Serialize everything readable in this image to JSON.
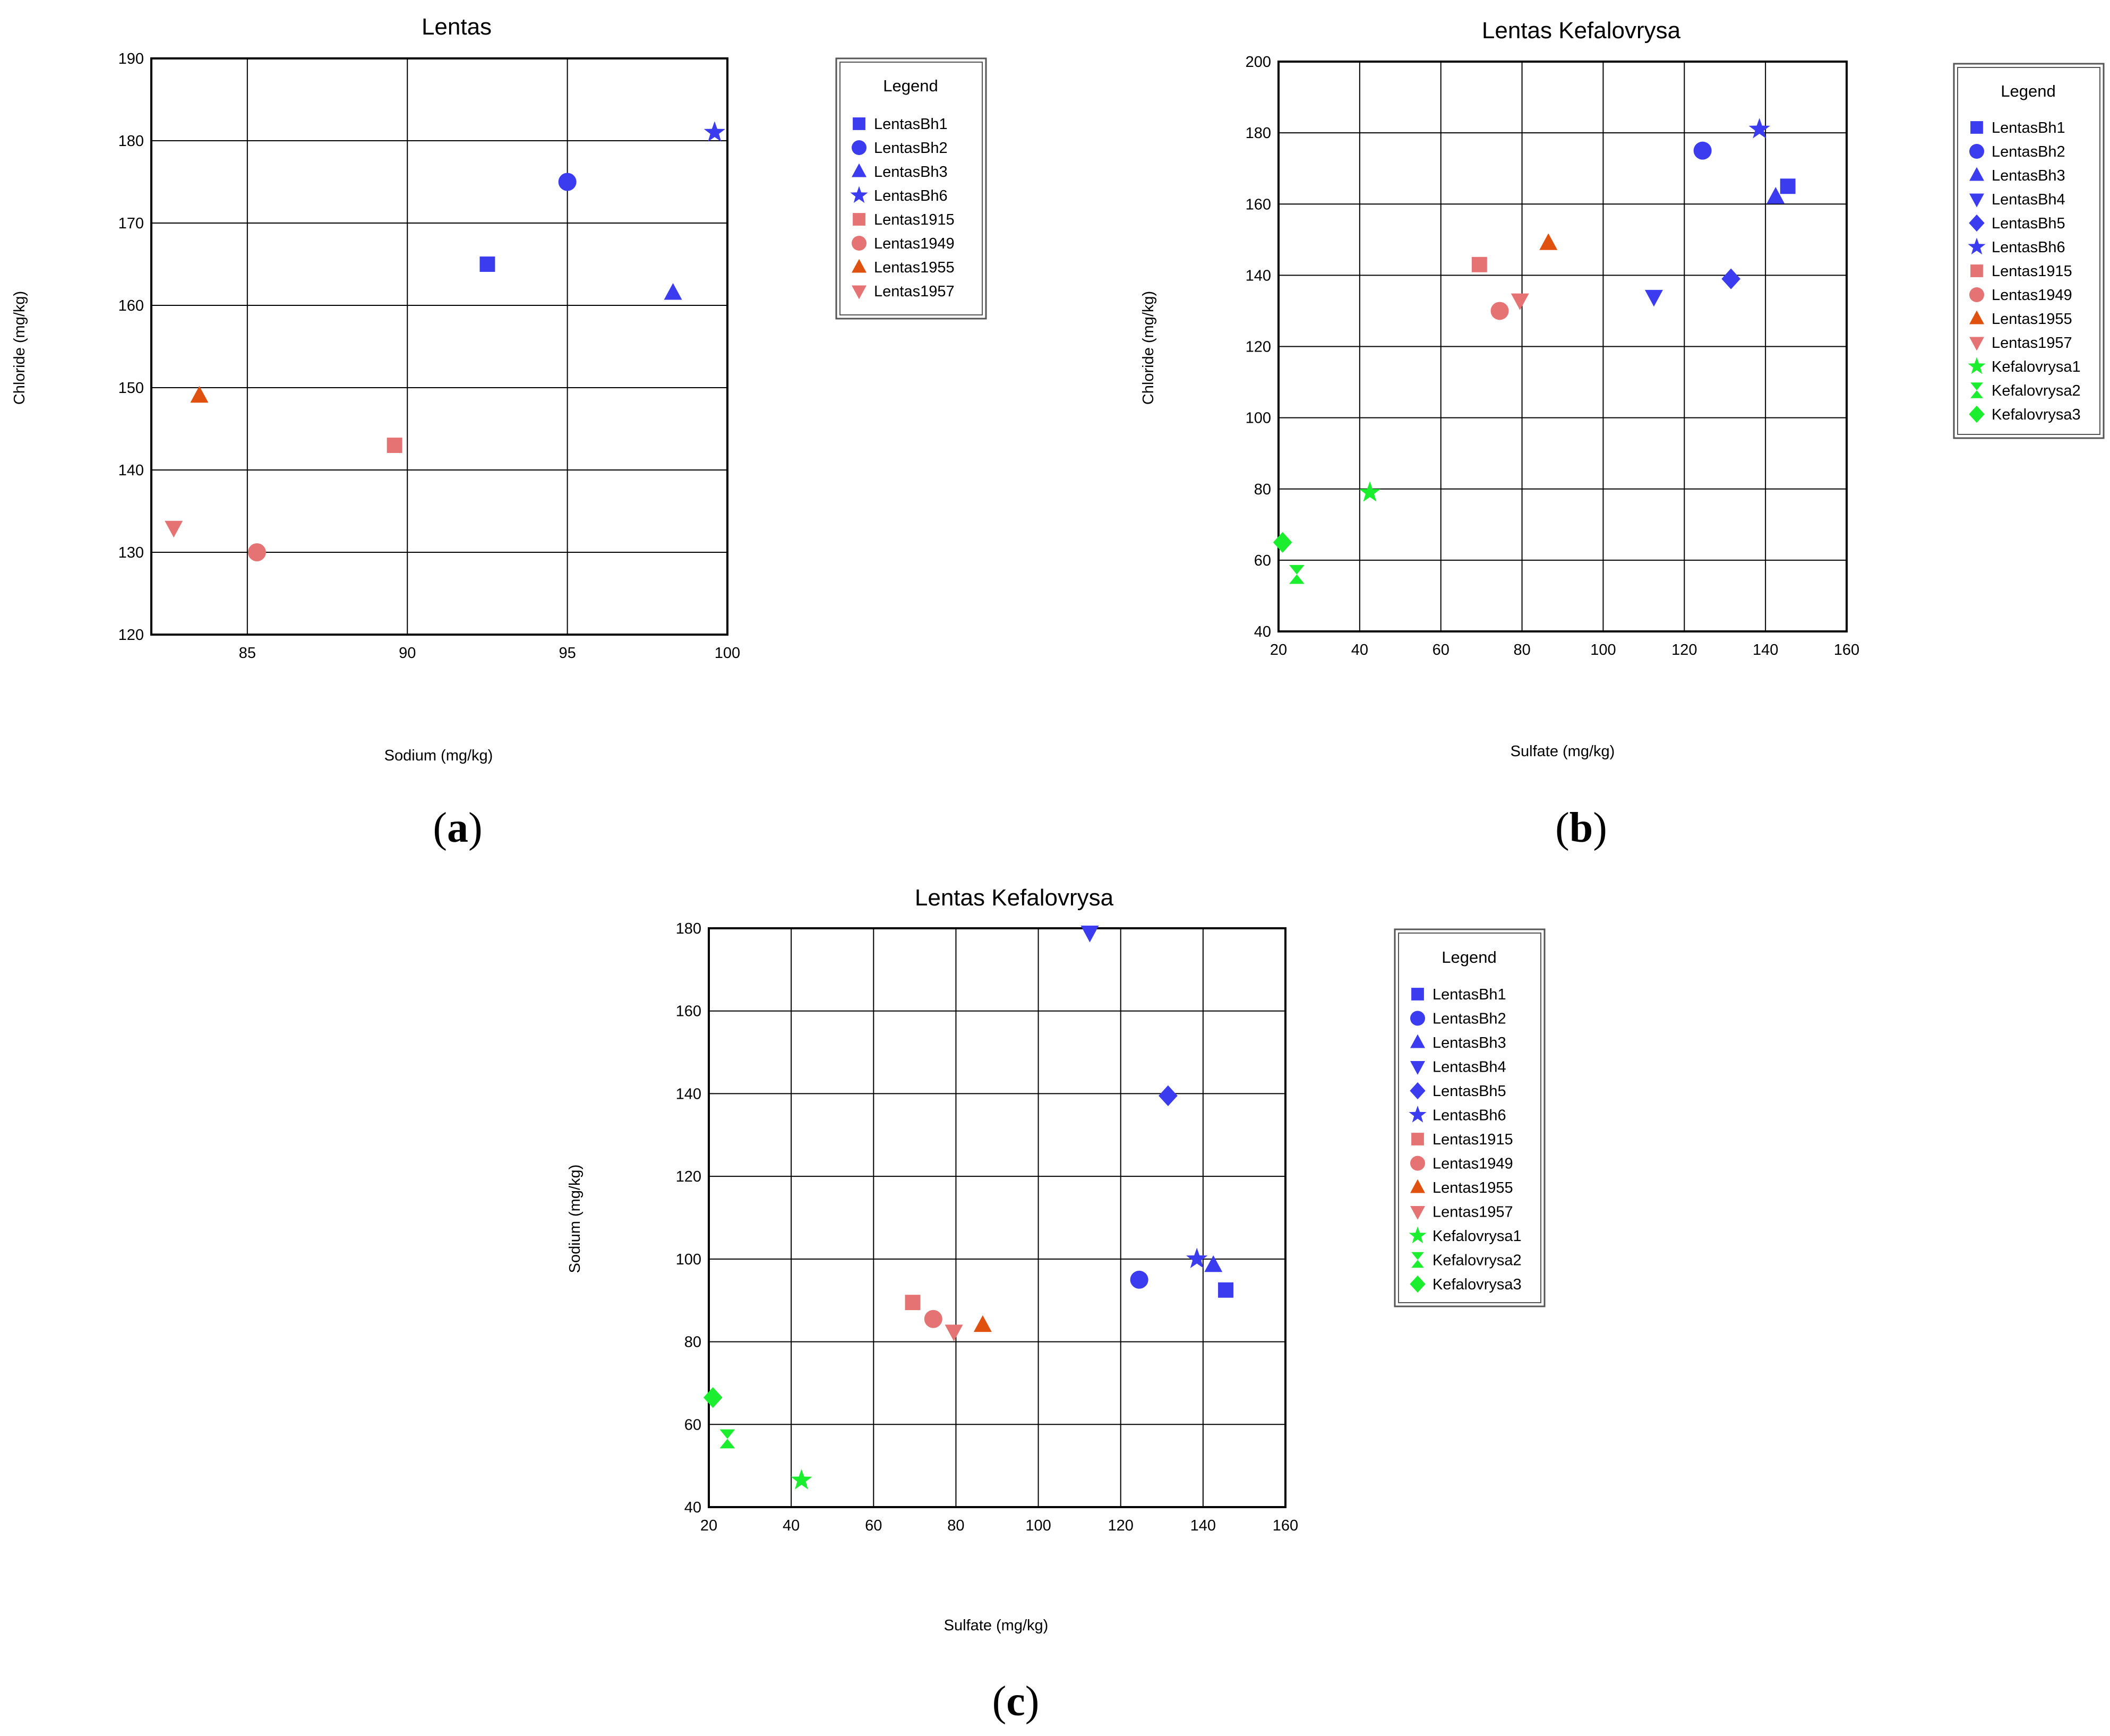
{
  "chart_data": [
    {
      "type": "scatter",
      "title": "Lentas",
      "xlabel": "Sodium (mg/kg)",
      "ylabel": "Chloride (mg/kg)",
      "xlim": [
        82,
        100
      ],
      "ylim": [
        120,
        190
      ],
      "xticks": [
        85,
        90,
        95,
        100
      ],
      "yticks": [
        120,
        130,
        140,
        150,
        160,
        170,
        180,
        190
      ],
      "grid": true,
      "legend_title": "Legend",
      "legend_position": "right",
      "panel_label": "a",
      "series": [
        {
          "name": "LentasBh1",
          "marker": "square",
          "color": "#3b3bf0",
          "points": [
            [
              92.5,
              165
            ]
          ]
        },
        {
          "name": "LentasBh2",
          "marker": "circle",
          "color": "#3b3bf0",
          "points": [
            [
              95,
              175
            ]
          ]
        },
        {
          "name": "LentasBh3",
          "marker": "triangle-up",
          "color": "#3b3bf0",
          "points": [
            [
              98.3,
              161.5
            ]
          ]
        },
        {
          "name": "LentasBh6",
          "marker": "star",
          "color": "#3b3bf0",
          "points": [
            [
              99.6,
              181
            ]
          ]
        },
        {
          "name": "Lentas1915",
          "marker": "square",
          "color": "#e57373",
          "points": [
            [
              89.6,
              143
            ]
          ]
        },
        {
          "name": "Lentas1949",
          "marker": "circle",
          "color": "#e57373",
          "points": [
            [
              85.3,
              130
            ]
          ]
        },
        {
          "name": "Lentas1955",
          "marker": "triangle-up",
          "color": "#e0500f",
          "points": [
            [
              83.5,
              149
            ]
          ]
        },
        {
          "name": "Lentas1957",
          "marker": "triangle-down",
          "color": "#e57373",
          "points": [
            [
              82.7,
              133
            ]
          ]
        }
      ]
    },
    {
      "type": "scatter",
      "title": "Lentas Kefalovrysa",
      "xlabel": "Sulfate (mg/kg)",
      "ylabel": "Chloride (mg/kg)",
      "xlim": [
        20,
        160
      ],
      "ylim": [
        40,
        200
      ],
      "xticks": [
        20,
        40,
        60,
        80,
        100,
        120,
        140,
        160
      ],
      "yticks": [
        40,
        60,
        80,
        100,
        120,
        140,
        160,
        180,
        200
      ],
      "grid": true,
      "legend_title": "Legend",
      "legend_position": "right",
      "panel_label": "b",
      "series": [
        {
          "name": "LentasBh1",
          "marker": "square",
          "color": "#3b3bf0",
          "points": [
            [
              145.5,
              165
            ]
          ]
        },
        {
          "name": "LentasBh2",
          "marker": "circle",
          "color": "#3b3bf0",
          "points": [
            [
              124.5,
              175
            ]
          ]
        },
        {
          "name": "LentasBh3",
          "marker": "triangle-up",
          "color": "#3b3bf0",
          "points": [
            [
              142.5,
              162
            ]
          ]
        },
        {
          "name": "LentasBh4",
          "marker": "triangle-down",
          "color": "#3b3bf0",
          "points": [
            [
              112.5,
              134
            ]
          ]
        },
        {
          "name": "LentasBh5",
          "marker": "diamond",
          "color": "#3b3bf0",
          "points": [
            [
              131.5,
              139
            ]
          ]
        },
        {
          "name": "LentasBh6",
          "marker": "star",
          "color": "#3b3bf0",
          "points": [
            [
              138.5,
              181
            ]
          ]
        },
        {
          "name": "Lentas1915",
          "marker": "square",
          "color": "#e57373",
          "points": [
            [
              69.5,
              143
            ]
          ]
        },
        {
          "name": "Lentas1949",
          "marker": "circle",
          "color": "#e57373",
          "points": [
            [
              74.5,
              130
            ]
          ]
        },
        {
          "name": "Lentas1955",
          "marker": "triangle-up",
          "color": "#e0500f",
          "points": [
            [
              86.5,
              149
            ]
          ]
        },
        {
          "name": "Lentas1957",
          "marker": "triangle-down",
          "color": "#e57373",
          "points": [
            [
              79.5,
              133
            ]
          ]
        },
        {
          "name": "Kefalovrysa1",
          "marker": "star",
          "color": "#1aee2e",
          "points": [
            [
              42.5,
              79
            ]
          ]
        },
        {
          "name": "Kefalovrysa2",
          "marker": "hourglass",
          "color": "#1aee2e",
          "points": [
            [
              24.5,
              56
            ]
          ]
        },
        {
          "name": "Kefalovrysa3",
          "marker": "diamond",
          "color": "#1aee2e",
          "points": [
            [
              21,
              65
            ]
          ]
        }
      ]
    },
    {
      "type": "scatter",
      "title": "Lentas Kefalovrysa",
      "xlabel": "Sulfate (mg/kg)",
      "ylabel": "Sodium (mg/kg)",
      "xlim": [
        20,
        160
      ],
      "ylim": [
        40,
        180
      ],
      "xticks": [
        20,
        40,
        60,
        80,
        100,
        120,
        140,
        160
      ],
      "yticks": [
        40,
        60,
        80,
        100,
        120,
        140,
        160,
        180
      ],
      "grid": true,
      "legend_title": "Legend",
      "legend_position": "right",
      "panel_label": "c",
      "series": [
        {
          "name": "LentasBh1",
          "marker": "square",
          "color": "#3b3bf0",
          "points": [
            [
              145.5,
              92.5
            ]
          ]
        },
        {
          "name": "LentasBh2",
          "marker": "circle",
          "color": "#3b3bf0",
          "points": [
            [
              124.5,
              95
            ]
          ]
        },
        {
          "name": "LentasBh3",
          "marker": "triangle-up",
          "color": "#3b3bf0",
          "points": [
            [
              142.5,
              98.5
            ]
          ]
        },
        {
          "name": "LentasBh4",
          "marker": "triangle-down",
          "color": "#3b3bf0",
          "points": [
            [
              112.5,
              179
            ]
          ]
        },
        {
          "name": "LentasBh5",
          "marker": "diamond",
          "color": "#3b3bf0",
          "points": [
            [
              131.5,
              139.5
            ]
          ]
        },
        {
          "name": "LentasBh6",
          "marker": "star",
          "color": "#3b3bf0",
          "points": [
            [
              138.5,
              100
            ]
          ]
        },
        {
          "name": "Lentas1915",
          "marker": "square",
          "color": "#e57373",
          "points": [
            [
              69.5,
              89.5
            ]
          ]
        },
        {
          "name": "Lentas1949",
          "marker": "circle",
          "color": "#e57373",
          "points": [
            [
              74.5,
              85.5
            ]
          ]
        },
        {
          "name": "Lentas1955",
          "marker": "triangle-up",
          "color": "#e0500f",
          "points": [
            [
              86.5,
              84
            ]
          ]
        },
        {
          "name": "Lentas1957",
          "marker": "triangle-down",
          "color": "#e57373",
          "points": [
            [
              79.5,
              82.5
            ]
          ]
        },
        {
          "name": "Kefalovrysa1",
          "marker": "star",
          "color": "#1aee2e",
          "points": [
            [
              42.5,
              46.5
            ]
          ]
        },
        {
          "name": "Kefalovrysa2",
          "marker": "hourglass",
          "color": "#1aee2e",
          "points": [
            [
              24.5,
              56.5
            ]
          ]
        },
        {
          "name": "Kefalovrysa3",
          "marker": "diamond",
          "color": "#1aee2e",
          "points": [
            [
              21,
              66.5
            ]
          ]
        }
      ]
    }
  ]
}
